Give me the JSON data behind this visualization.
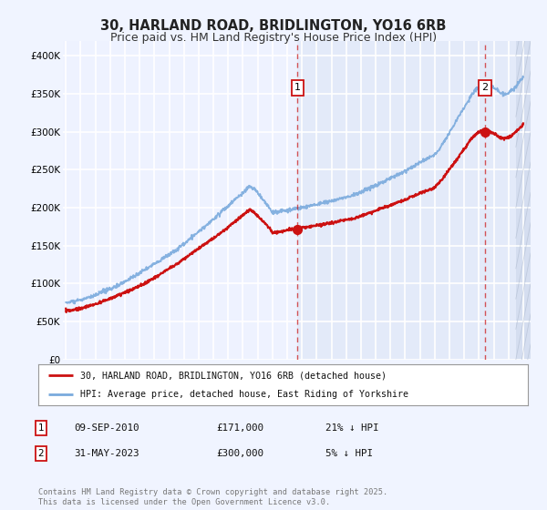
{
  "title": "30, HARLAND ROAD, BRIDLINGTON, YO16 6RB",
  "subtitle": "Price paid vs. HM Land Registry's House Price Index (HPI)",
  "ylabel_ticks": [
    "£0",
    "£50K",
    "£100K",
    "£150K",
    "£200K",
    "£250K",
    "£300K",
    "£350K",
    "£400K"
  ],
  "ytick_values": [
    0,
    50000,
    100000,
    150000,
    200000,
    250000,
    300000,
    350000,
    400000
  ],
  "ylim": [
    0,
    420000
  ],
  "xlim_start": 1994.8,
  "xlim_end": 2026.5,
  "xticks": [
    1995,
    1996,
    1997,
    1998,
    1999,
    2000,
    2001,
    2002,
    2003,
    2004,
    2005,
    2006,
    2007,
    2008,
    2009,
    2010,
    2011,
    2012,
    2013,
    2014,
    2015,
    2016,
    2017,
    2018,
    2019,
    2020,
    2021,
    2022,
    2023,
    2024,
    2025,
    2026
  ],
  "background_color": "#f0f4ff",
  "plot_bg_color": "#eef2ff",
  "plot_bg_color_right": "#dce6f5",
  "grid_color": "#ffffff",
  "hpi_color": "#7aaadd",
  "price_color": "#cc1111",
  "marker1_x": 2010.69,
  "marker1_y": 171000,
  "marker1_label": "1",
  "marker1_date": "09-SEP-2010",
  "marker1_price": "£171,000",
  "marker1_note": "21% ↓ HPI",
  "marker2_x": 2023.42,
  "marker2_y": 300000,
  "marker2_label": "2",
  "marker2_date": "31-MAY-2023",
  "marker2_price": "£300,000",
  "marker2_note": "5% ↓ HPI",
  "legend_line1": "30, HARLAND ROAD, BRIDLINGTON, YO16 6RB (detached house)",
  "legend_line2": "HPI: Average price, detached house, East Riding of Yorkshire",
  "footnote": "Contains HM Land Registry data © Crown copyright and database right 2025.\nThis data is licensed under the Open Government Licence v3.0.",
  "title_fontsize": 10.5,
  "subtitle_fontsize": 9
}
